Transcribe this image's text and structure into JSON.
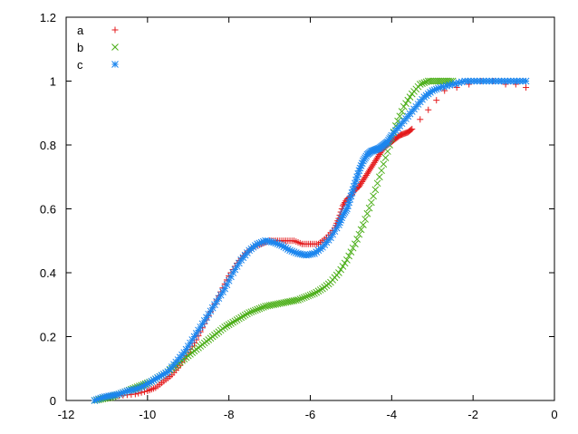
{
  "chart_data": {
    "type": "scatter",
    "title": "",
    "xlabel": "",
    "ylabel": "",
    "xlim": [
      -12,
      0
    ],
    "ylim": [
      0,
      1.2
    ],
    "x_ticks": [
      -12,
      -10,
      -8,
      -6,
      -4,
      -2,
      0
    ],
    "x_tick_labels": [
      "-12",
      "-10",
      "-8",
      "-6",
      "-4",
      "-2",
      "0"
    ],
    "y_ticks": [
      0,
      0.2,
      0.4,
      0.6,
      0.8,
      1,
      1.2
    ],
    "y_tick_labels": [
      "0",
      "0.2",
      "0.4",
      "0.6",
      "0.8",
      "1",
      "1.2"
    ],
    "grid": false,
    "legend_position": "top-left",
    "series": [
      {
        "name": "a",
        "marker": "plus",
        "color": "#e41a1c",
        "points": [
          [
            -11.0,
            0.01
          ],
          [
            -10.7,
            0.015
          ],
          [
            -10.3,
            0.02
          ],
          [
            -10.0,
            0.03
          ],
          [
            -9.8,
            0.04
          ],
          [
            -9.6,
            0.06
          ],
          [
            -9.4,
            0.08
          ],
          [
            -9.2,
            0.11
          ],
          [
            -9.0,
            0.15
          ],
          [
            -8.8,
            0.19
          ],
          [
            -8.6,
            0.24
          ],
          [
            -8.4,
            0.29
          ],
          [
            -8.2,
            0.34
          ],
          [
            -8.0,
            0.39
          ],
          [
            -7.8,
            0.43
          ],
          [
            -7.6,
            0.46
          ],
          [
            -7.4,
            0.48
          ],
          [
            -7.2,
            0.49
          ],
          [
            -7.0,
            0.5
          ],
          [
            -6.8,
            0.5
          ],
          [
            -6.6,
            0.5
          ],
          [
            -6.4,
            0.5
          ],
          [
            -6.2,
            0.49
          ],
          [
            -6.0,
            0.49
          ],
          [
            -5.8,
            0.49
          ],
          [
            -5.6,
            0.51
          ],
          [
            -5.4,
            0.54
          ],
          [
            -5.3,
            0.57
          ],
          [
            -5.2,
            0.61
          ],
          [
            -5.1,
            0.63
          ],
          [
            -5.0,
            0.64
          ],
          [
            -4.9,
            0.66
          ],
          [
            -4.8,
            0.67
          ],
          [
            -4.7,
            0.69
          ],
          [
            -4.6,
            0.71
          ],
          [
            -4.5,
            0.73
          ],
          [
            -4.4,
            0.75
          ],
          [
            -4.3,
            0.77
          ],
          [
            -4.2,
            0.79
          ],
          [
            -4.1,
            0.8
          ],
          [
            -4.0,
            0.81
          ],
          [
            -3.9,
            0.82
          ],
          [
            -3.8,
            0.83
          ],
          [
            -3.7,
            0.835
          ],
          [
            -3.6,
            0.84
          ],
          [
            -3.5,
            0.85
          ],
          [
            -3.3,
            0.88
          ],
          [
            -3.1,
            0.91
          ],
          [
            -2.9,
            0.94
          ],
          [
            -2.7,
            0.97
          ],
          [
            -2.4,
            0.98
          ],
          [
            -2.1,
            0.99
          ],
          [
            -1.8,
            1.0
          ],
          [
            -1.5,
            1.0
          ],
          [
            -1.2,
            0.99
          ],
          [
            -0.95,
            0.99
          ],
          [
            -0.7,
            0.98
          ]
        ]
      },
      {
        "name": "b",
        "marker": "cross",
        "color": "#4daf1a",
        "points": [
          [
            -11.3,
            0.0
          ],
          [
            -11.1,
            0.005
          ],
          [
            -10.9,
            0.01
          ],
          [
            -10.7,
            0.02
          ],
          [
            -10.5,
            0.03
          ],
          [
            -10.3,
            0.04
          ],
          [
            -10.1,
            0.05
          ],
          [
            -9.9,
            0.06
          ],
          [
            -9.7,
            0.075
          ],
          [
            -9.5,
            0.09
          ],
          [
            -9.3,
            0.11
          ],
          [
            -9.1,
            0.13
          ],
          [
            -8.9,
            0.15
          ],
          [
            -8.7,
            0.17
          ],
          [
            -8.5,
            0.19
          ],
          [
            -8.3,
            0.21
          ],
          [
            -8.1,
            0.23
          ],
          [
            -7.9,
            0.245
          ],
          [
            -7.7,
            0.26
          ],
          [
            -7.5,
            0.275
          ],
          [
            -7.3,
            0.285
          ],
          [
            -7.1,
            0.295
          ],
          [
            -6.9,
            0.3
          ],
          [
            -6.7,
            0.305
          ],
          [
            -6.5,
            0.31
          ],
          [
            -6.3,
            0.315
          ],
          [
            -6.1,
            0.325
          ],
          [
            -5.9,
            0.335
          ],
          [
            -5.7,
            0.35
          ],
          [
            -5.5,
            0.37
          ],
          [
            -5.3,
            0.4
          ],
          [
            -5.1,
            0.44
          ],
          [
            -4.9,
            0.49
          ],
          [
            -4.7,
            0.55
          ],
          [
            -4.5,
            0.62
          ],
          [
            -4.3,
            0.7
          ],
          [
            -4.1,
            0.78
          ],
          [
            -3.9,
            0.86
          ],
          [
            -3.7,
            0.92
          ],
          [
            -3.5,
            0.96
          ],
          [
            -3.3,
            0.99
          ],
          [
            -3.1,
            1.0
          ],
          [
            -2.9,
            1.0
          ],
          [
            -2.7,
            1.0
          ],
          [
            -2.5,
            1.0
          ]
        ]
      },
      {
        "name": "c",
        "marker": "star",
        "color": "#1c86ee",
        "points": [
          [
            -11.3,
            0.0
          ],
          [
            -11.1,
            0.01
          ],
          [
            -10.9,
            0.015
          ],
          [
            -10.7,
            0.02
          ],
          [
            -10.5,
            0.03
          ],
          [
            -10.3,
            0.035
          ],
          [
            -10.1,
            0.045
          ],
          [
            -9.9,
            0.06
          ],
          [
            -9.7,
            0.075
          ],
          [
            -9.5,
            0.09
          ],
          [
            -9.3,
            0.12
          ],
          [
            -9.1,
            0.15
          ],
          [
            -8.9,
            0.19
          ],
          [
            -8.7,
            0.23
          ],
          [
            -8.5,
            0.27
          ],
          [
            -8.3,
            0.31
          ],
          [
            -8.1,
            0.35
          ],
          [
            -7.9,
            0.4
          ],
          [
            -7.7,
            0.44
          ],
          [
            -7.5,
            0.47
          ],
          [
            -7.3,
            0.49
          ],
          [
            -7.1,
            0.5
          ],
          [
            -6.9,
            0.495
          ],
          [
            -6.7,
            0.485
          ],
          [
            -6.5,
            0.47
          ],
          [
            -6.3,
            0.46
          ],
          [
            -6.1,
            0.455
          ],
          [
            -5.9,
            0.46
          ],
          [
            -5.7,
            0.48
          ],
          [
            -5.5,
            0.51
          ],
          [
            -5.3,
            0.55
          ],
          [
            -5.2,
            0.58
          ],
          [
            -5.1,
            0.6
          ],
          [
            -5.0,
            0.64
          ],
          [
            -4.9,
            0.68
          ],
          [
            -4.8,
            0.72
          ],
          [
            -4.7,
            0.75
          ],
          [
            -4.6,
            0.77
          ],
          [
            -4.5,
            0.78
          ],
          [
            -4.4,
            0.785
          ],
          [
            -4.3,
            0.79
          ],
          [
            -4.2,
            0.8
          ],
          [
            -4.1,
            0.81
          ],
          [
            -4.0,
            0.83
          ],
          [
            -3.8,
            0.86
          ],
          [
            -3.6,
            0.89
          ],
          [
            -3.4,
            0.92
          ],
          [
            -3.2,
            0.95
          ],
          [
            -3.0,
            0.97
          ],
          [
            -2.8,
            0.98
          ],
          [
            -2.5,
            0.99
          ],
          [
            -2.2,
            1.0
          ],
          [
            -1.9,
            1.0
          ],
          [
            -1.6,
            1.0
          ],
          [
            -1.3,
            1.0
          ],
          [
            -1.0,
            1.0
          ],
          [
            -0.7,
            1.0
          ]
        ]
      }
    ]
  }
}
